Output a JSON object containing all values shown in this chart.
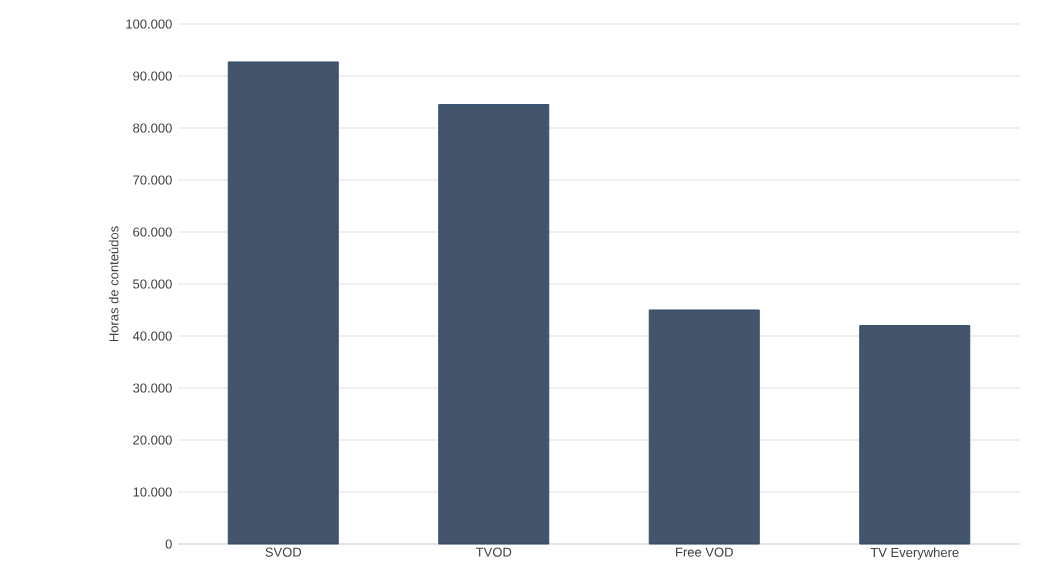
{
  "chart_data": {
    "type": "bar",
    "ylabel": "Horas de conteúdos",
    "categories": [
      "SVOD",
      "TVOD",
      "Free VOD",
      "TV Everywhere"
    ],
    "values": [
      92700,
      84500,
      45000,
      42000
    ],
    "color": "#44546a",
    "ylim": [
      0,
      100000
    ],
    "yticks": [
      {
        "value": 0,
        "label": "0"
      },
      {
        "value": 10000,
        "label": "10.000"
      },
      {
        "value": 20000,
        "label": "20.000"
      },
      {
        "value": 30000,
        "label": "30.000"
      },
      {
        "value": 40000,
        "label": "40.000"
      },
      {
        "value": 50000,
        "label": "50.000"
      },
      {
        "value": 60000,
        "label": "60.000"
      },
      {
        "value": 70000,
        "label": "70.000"
      },
      {
        "value": 80000,
        "label": "80.000"
      },
      {
        "value": 90000,
        "label": "90.000"
      },
      {
        "value": 100000,
        "label": "100.000"
      }
    ],
    "grid": "y"
  }
}
